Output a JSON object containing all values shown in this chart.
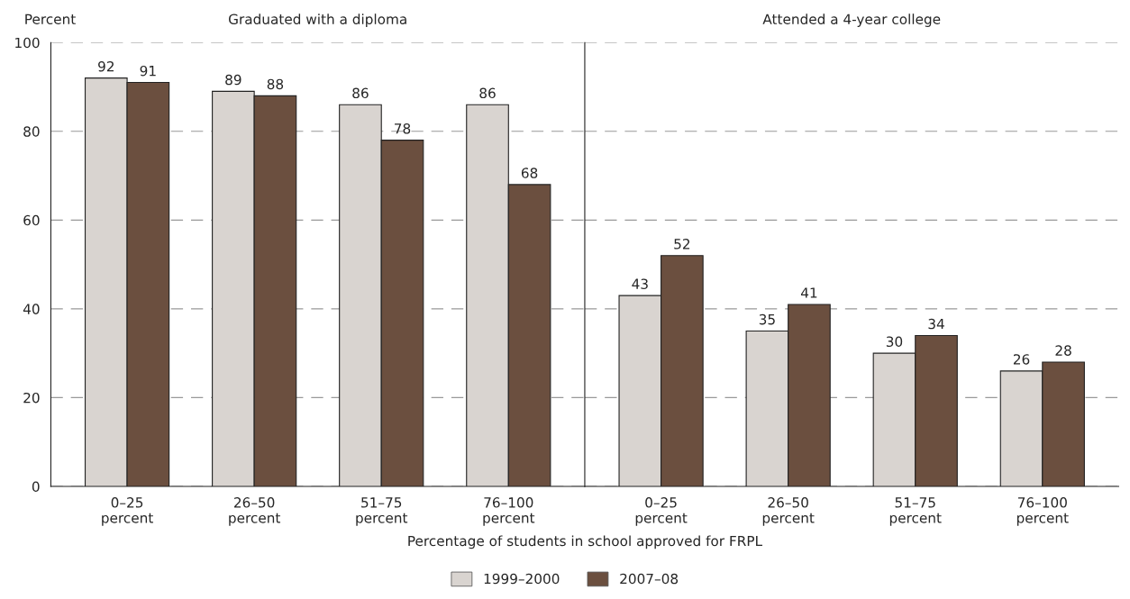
{
  "chart_data": [
    {
      "type": "bar",
      "title": "Graduated with a diploma",
      "ylabel": "Percent",
      "xlabel": "Percentage of students in school approved for FRPL",
      "categories": [
        "0–25\npercent",
        "26–50\npercent",
        "51–75\npercent",
        "76–100\npercent"
      ],
      "series": [
        {
          "name": "1999–2000",
          "color": "#d9d4d0",
          "values": [
            92,
            89,
            86,
            86
          ]
        },
        {
          "name": "2007–08",
          "color": "#6b4f3f",
          "values": [
            91,
            88,
            78,
            68
          ]
        }
      ],
      "ylim": [
        0,
        100
      ],
      "yticks": [
        0,
        20,
        40,
        60,
        80,
        100
      ],
      "grid": "y",
      "data_labels": true,
      "legend": "bottom"
    },
    {
      "type": "bar",
      "title": "Attended a 4-year college",
      "categories": [
        "0–25\npercent",
        "26–50\npercent",
        "51–75\npercent",
        "76–100\npercent"
      ],
      "series": [
        {
          "color": "#d9d4d0",
          "values": [
            43,
            35,
            30,
            26
          ]
        },
        {
          "color": "#6b4f3f",
          "values": [
            52,
            41,
            34,
            28
          ]
        }
      ],
      "ylim": [
        0,
        100
      ],
      "yticks": [
        0,
        20,
        40,
        60,
        80,
        100
      ],
      "grid": "y",
      "data_labels": true,
      "tick_labels": "x"
    }
  ]
}
